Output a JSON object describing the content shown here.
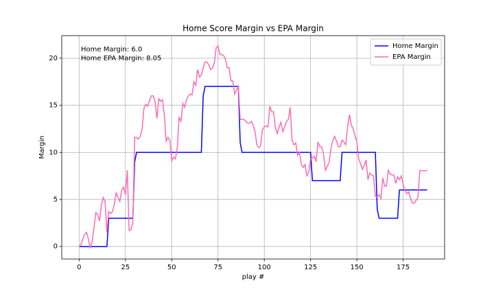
{
  "chart_data": {
    "type": "line",
    "title": "Home Score Margin vs EPA Margin",
    "x_label": "play #",
    "y_label": "Margin",
    "annotations": [
      "Home Margin: 6.0",
      "Home EPA Margin: 8.05"
    ],
    "xlim": [
      -9.4,
      197.4
    ],
    "ylim": [
      -1.33,
      22.4
    ],
    "xticks": [
      0,
      25,
      50,
      75,
      100,
      125,
      150,
      175
    ],
    "yticks": [
      0,
      5,
      10,
      15,
      20
    ],
    "grid": true,
    "legend": "upper right",
    "series": [
      {
        "name": "Home Margin",
        "color": "#0000ff",
        "x": [
          0,
          15,
          16,
          29,
          30,
          31,
          66,
          67,
          68,
          86,
          87,
          88,
          125,
          126,
          141,
          142,
          160,
          161,
          162,
          172,
          173,
          188
        ],
        "values": [
          0,
          0,
          3,
          3,
          9,
          10,
          10,
          16,
          17,
          17,
          11,
          10,
          10,
          7,
          7,
          10,
          10,
          4,
          3,
          3,
          6,
          6
        ]
      },
      {
        "name": "EPA Margin",
        "color": "#ff69b4",
        "x": [
          0,
          1,
          2,
          3,
          4,
          5,
          6,
          7,
          8,
          9,
          10,
          11,
          12,
          13,
          14,
          15,
          16,
          17,
          18,
          19,
          20,
          21,
          22,
          23,
          24,
          25,
          26,
          27,
          28,
          29,
          30,
          31,
          32,
          33,
          34,
          35,
          36,
          37,
          38,
          39,
          40,
          41,
          42,
          43,
          44,
          45,
          46,
          47,
          48,
          49,
          50,
          51,
          52,
          53,
          54,
          55,
          56,
          57,
          58,
          59,
          60,
          61,
          62,
          63,
          64,
          65,
          66,
          67,
          68,
          69,
          70,
          71,
          72,
          73,
          74,
          75,
          76,
          77,
          78,
          79,
          80,
          81,
          82,
          83,
          84,
          85,
          86,
          87,
          88,
          89,
          90,
          91,
          92,
          93,
          94,
          95,
          96,
          97,
          98,
          99,
          100,
          101,
          102,
          103,
          104,
          105,
          106,
          107,
          108,
          109,
          110,
          111,
          112,
          113,
          114,
          115,
          116,
          117,
          118,
          119,
          120,
          121,
          122,
          123,
          124,
          125,
          126,
          127,
          128,
          129,
          130,
          131,
          132,
          133,
          134,
          135,
          136,
          137,
          138,
          139,
          140,
          141,
          142,
          143,
          144,
          145,
          146,
          147,
          148,
          149,
          150,
          151,
          152,
          153,
          154,
          155,
          156,
          157,
          158,
          159,
          160,
          161,
          162,
          163,
          164,
          165,
          166,
          167,
          168,
          169,
          170,
          171,
          172,
          173,
          174,
          175,
          176,
          177,
          178,
          179,
          180,
          181,
          182,
          183,
          184,
          185,
          186,
          187,
          188
        ],
        "values": [
          0,
          0.2,
          0.8,
          1.3,
          1.5,
          0.8,
          -0.2,
          0.5,
          2,
          3.6,
          3.4,
          2.7,
          4.4,
          5.2,
          4.8,
          1.5,
          3.7,
          3.5,
          3.7,
          4.5,
          5.7,
          5.2,
          4.8,
          6.0,
          6.3,
          5.5,
          8.1,
          1.7,
          1.8,
          2.5,
          11.6,
          11.6,
          11.4,
          11.7,
          12.5,
          14.7,
          15.1,
          14.9,
          15.5,
          16.0,
          16.0,
          15.4,
          13.6,
          15.7,
          15.4,
          15.6,
          14.0,
          11.2,
          11.6,
          11.3,
          9.1,
          9.5,
          9.3,
          10.5,
          13.7,
          13.3,
          15.2,
          14.8,
          15.6,
          16.0,
          16.2,
          16.1,
          17.5,
          17.1,
          18.8,
          18.0,
          18.2,
          19.0,
          19.6,
          19.6,
          19.3,
          18.8,
          18.9,
          19.5,
          21.1,
          21.3,
          20.4,
          20.4,
          20.3,
          19.9,
          19.0,
          19.0,
          17.6,
          17.6,
          16.2,
          16.6,
          17.0,
          13.5,
          13.5,
          13.5,
          13.3,
          13.1,
          13.1,
          13.3,
          12.9,
          12.2,
          10.8,
          10.5,
          10.7,
          12.4,
          12.7,
          12.8,
          12.7,
          14.9,
          14.3,
          14.3,
          12.6,
          12.0,
          12.7,
          13.2,
          12.2,
          12.7,
          13.3,
          13.5,
          14.8,
          11.3,
          10.8,
          11.0,
          9.7,
          10.0,
          8.7,
          8.4,
          8.7,
          7.5,
          7.9,
          9.3,
          9.4,
          9.6,
          9.0,
          11.1,
          10.6,
          10.6,
          9.8,
          8.1,
          8.5,
          8.9,
          10.4,
          11.3,
          11.7,
          11.2,
          10.6,
          10.6,
          11.3,
          11.1,
          10.8,
          12.7,
          14.0,
          12.9,
          12.5,
          11.8,
          11.1,
          9.3,
          8.8,
          8.2,
          8.6,
          9.2,
          7.1,
          7.8,
          7.6,
          7.5,
          5.3,
          5.3,
          5.5,
          5.1,
          7.3,
          6.4,
          6.4,
          8.1,
          7.7,
          7.6,
          7.6,
          6.7,
          7.4,
          7.1,
          7.5,
          6.6,
          5.9,
          5.6,
          5.8,
          5.1,
          4.6,
          4.6,
          4.9,
          5.2,
          8.05,
          8.05,
          8.05,
          8.05,
          8.05
        ]
      }
    ]
  }
}
